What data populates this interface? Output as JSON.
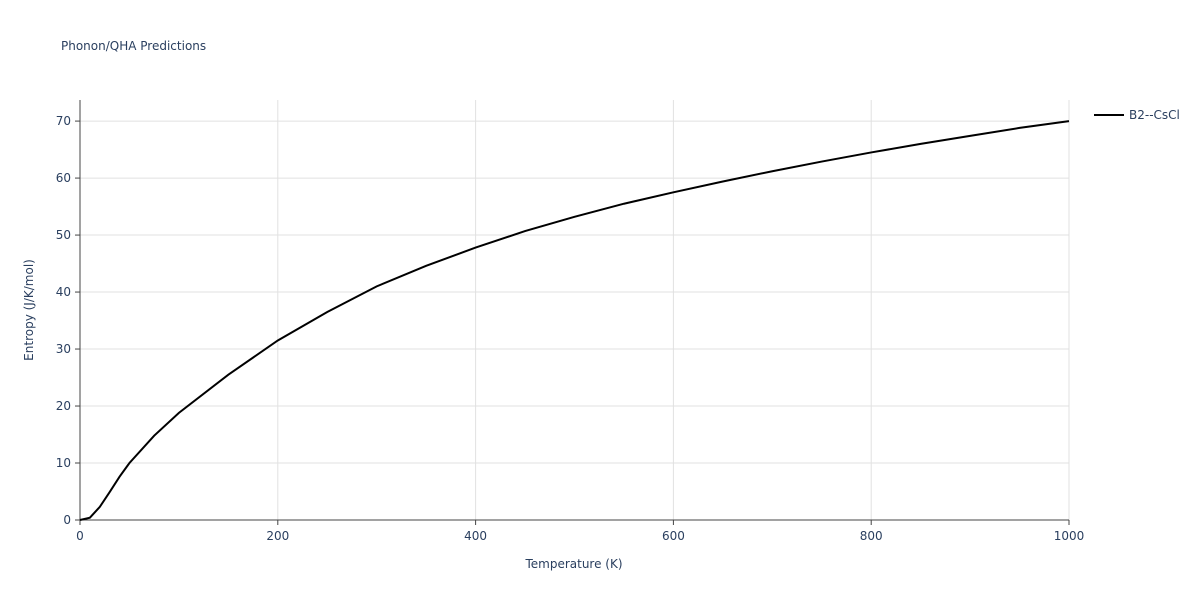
{
  "chart_data": {
    "type": "line",
    "title": "Phonon/QHA Predictions",
    "x_label": "Temperature (K)",
    "y_label": "Entropy (J/K/mol)",
    "x": [
      0,
      10,
      20,
      30,
      40,
      50,
      75,
      100,
      150,
      200,
      250,
      300,
      350,
      400,
      450,
      500,
      550,
      600,
      650,
      700,
      750,
      800,
      850,
      900,
      950,
      1000
    ],
    "series": [
      {
        "name": "B2--CsCl",
        "color": "#000000",
        "values": [
          0,
          0.4,
          2.3,
          4.9,
          7.6,
          10,
          14.8,
          18.8,
          25.5,
          31.5,
          36.5,
          41,
          44.6,
          47.8,
          50.7,
          53.2,
          55.5,
          57.5,
          59.4,
          61.2,
          62.9,
          64.5,
          66,
          67.4,
          68.8,
          70
        ]
      }
    ],
    "xlim": [
      0,
      1000
    ],
    "ylim": [
      0,
      73.7
    ],
    "xticks": [
      0,
      200,
      400,
      600,
      800,
      1000
    ],
    "yticks": [
      0,
      10,
      20,
      30,
      40,
      50,
      60,
      70
    ],
    "grid": true,
    "legend": "right"
  }
}
